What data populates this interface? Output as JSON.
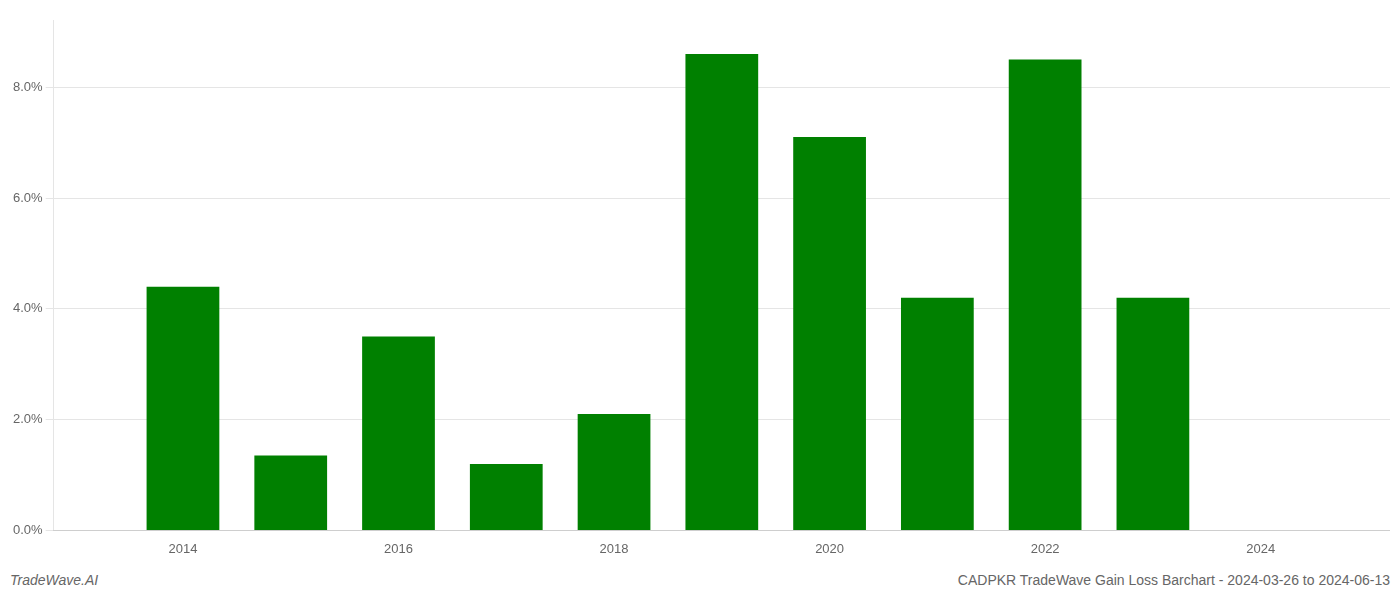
{
  "chart_data": {
    "type": "bar",
    "x": [
      2014,
      2015,
      2016,
      2017,
      2018,
      2019,
      2020,
      2021,
      2022,
      2023
    ],
    "values": [
      0.044,
      0.0135,
      0.035,
      0.012,
      0.021,
      0.086,
      0.071,
      0.042,
      0.085,
      0.042
    ],
    "color": "#008000",
    "xlim": [
      2012.8,
      2025.2
    ],
    "xticks": [
      2014,
      2016,
      2018,
      2020,
      2022,
      2024
    ],
    "ylim": [
      0,
      0.092
    ],
    "yticks": [
      {
        "value": 0.0,
        "label": "0.0%"
      },
      {
        "value": 0.02,
        "label": "2.0%"
      },
      {
        "value": 0.04,
        "label": "4.0%"
      },
      {
        "value": 0.06,
        "label": "6.0%"
      },
      {
        "value": 0.08,
        "label": "8.0%"
      }
    ],
    "grid": "y",
    "annotations": [
      "TradeWave.AI",
      "CADPKR TradeWave Gain Loss Barchart - 2024-03-26 to 2024-06-13"
    ]
  }
}
